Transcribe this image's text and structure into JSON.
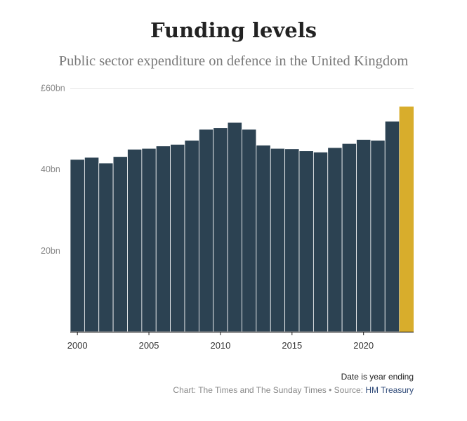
{
  "chart_data": {
    "type": "bar",
    "title": "Funding levels",
    "subtitle": "Public sector expenditure on defence in the United Kingdom",
    "xlabel": "",
    "ylabel": "",
    "ylim": [
      0,
      60
    ],
    "y_ticks": [
      {
        "value": 60,
        "label": "£60bn"
      },
      {
        "value": 40,
        "label": "40bn"
      },
      {
        "value": 20,
        "label": "20bn"
      }
    ],
    "x_ticks": [
      {
        "value": 2000,
        "label": "2000"
      },
      {
        "value": 2005,
        "label": "2005"
      },
      {
        "value": 2010,
        "label": "2010"
      },
      {
        "value": 2015,
        "label": "2015"
      },
      {
        "value": 2020,
        "label": "2020"
      }
    ],
    "x": [
      2000,
      2001,
      2002,
      2003,
      2004,
      2005,
      2006,
      2007,
      2008,
      2009,
      2010,
      2011,
      2012,
      2013,
      2014,
      2015,
      2016,
      2017,
      2018,
      2019,
      2020,
      2021,
      2022,
      2023
    ],
    "values": [
      42.4,
      42.9,
      41.5,
      43.1,
      44.9,
      45.1,
      45.7,
      46.1,
      47.1,
      49.8,
      50.2,
      51.5,
      49.8,
      45.9,
      45.1,
      45.0,
      44.5,
      44.2,
      45.3,
      46.3,
      47.3,
      47.1,
      51.8,
      55.4
    ],
    "highlight_index": 23,
    "colors": {
      "bar": "#2c4252",
      "highlight": "#d8ad2c",
      "grid": "#e6e6e6",
      "axis": "#222222",
      "tick_text": "#888888",
      "bar_border": "#ffffff"
    }
  },
  "footer": {
    "note": "Date is year ending",
    "credit": "Chart: The Times and The Sunday Times • Source: ",
    "source_link": "HM Treasury"
  }
}
